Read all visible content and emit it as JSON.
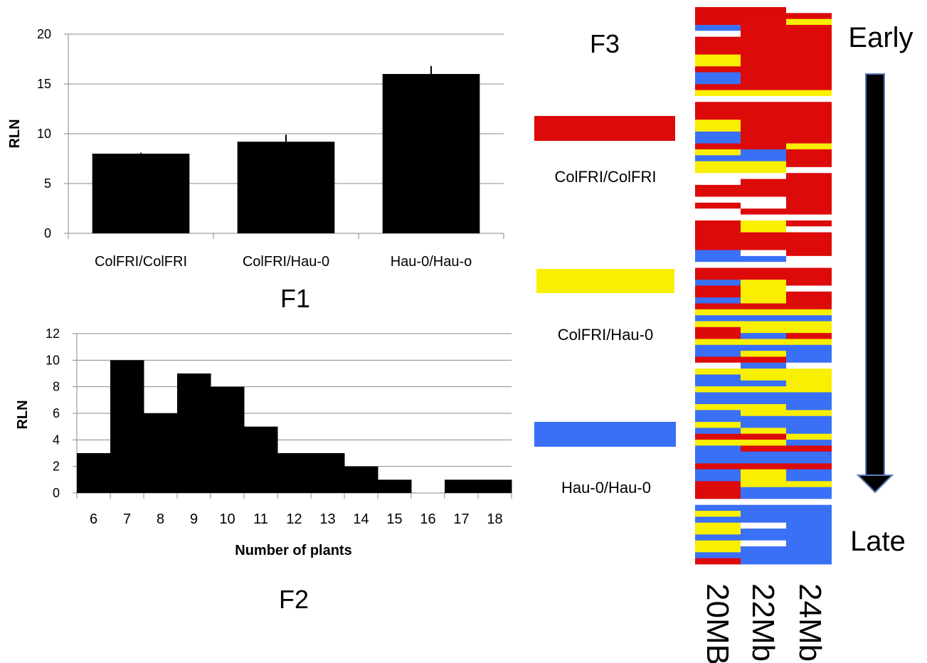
{
  "colors": {
    "bar": "#000000",
    "grid": "#888888",
    "ColFRI/ColFRI": "#dd0a0a",
    "ColFRI/Hau-0": "#f9ef00",
    "Hau-0/Hau-0": "#3a70f6",
    "missing": "#ffffff"
  },
  "chart_data": [
    {
      "type": "bar",
      "panel": "F1",
      "categories": [
        "ColFRI/ColFRI",
        "ColFRI/Hau-0",
        "Hau-0/Hau-o"
      ],
      "values": [
        8.0,
        9.2,
        16.0
      ],
      "error": [
        0.1,
        0.7,
        0.8
      ],
      "ylabel": "RLN",
      "xlabel": "",
      "ylim": [
        0,
        20
      ],
      "yticks": [
        0,
        5,
        10,
        15,
        20
      ],
      "grid": true
    },
    {
      "type": "bar",
      "panel": "F2",
      "categories": [
        "6",
        "7",
        "8",
        "9",
        "10",
        "11",
        "12",
        "13",
        "14",
        "15",
        "16",
        "17",
        "18"
      ],
      "values": [
        3,
        10,
        6,
        9,
        8,
        5,
        3,
        3,
        2,
        1,
        0,
        1,
        1
      ],
      "ylabel": "RLN",
      "xlabel": "Number of plants",
      "ylim": [
        0,
        12
      ],
      "yticks": [
        0,
        2,
        4,
        6,
        8,
        10,
        12
      ],
      "grid": true
    },
    {
      "type": "heatmap",
      "panel": "F3",
      "columns": [
        "20MB",
        "22Mb",
        "24Mb"
      ],
      "legend": [
        "ColFRI/ColFRI",
        "ColFRI/Hau-0",
        "Hau-0/Hau-0"
      ],
      "codes": {
        "R": "ColFRI/ColFRI",
        "Y": "ColFRI/Hau-0",
        "B": "Hau-0/Hau-0",
        "W": "missing"
      },
      "order": [
        "Early",
        "Late"
      ],
      "rows": [
        "RRW",
        "RRR",
        "RRY",
        "BRR",
        "WRR",
        "RRR",
        "RRR",
        "RRR",
        "YRR",
        "YRR",
        "RRR",
        "BRR",
        "BRR",
        "RRR",
        "YYY",
        "WWW",
        "RRR",
        "RRR",
        "RRR",
        "YRR",
        "YRR",
        "BRR",
        "BRR",
        "RRY",
        "YBR",
        "BBR",
        "YYR",
        "YYW",
        "WWR",
        "WRR",
        "RRR",
        "RRR",
        "WWR",
        "RWR",
        "WRR",
        "WWW",
        "RYR",
        "RYW",
        "RRR",
        "RRR",
        "RRR",
        "BWR",
        "BBW",
        "WWW",
        "RRR",
        "RRR",
        "BYR",
        "RYW",
        "RYR",
        "BYR",
        "RRR",
        "YYY",
        "BBB",
        "YYY",
        "RYY",
        "RBR",
        "YYY",
        "BBB",
        "BYB",
        "RRB",
        "WBW",
        "YYY",
        "BYY",
        "BBY",
        "YYY",
        "BBB",
        "BBB",
        "YYB",
        "BYY",
        "BBB",
        "YBB",
        "BYB",
        "RRY",
        "YYB",
        "BRR",
        "BBB",
        "BBB",
        "RRR",
        "BYB",
        "BYB",
        "RYY",
        "RBB",
        "RBB",
        "WWW",
        "BBB",
        "YBB",
        "BBB",
        "YWB",
        "YBB",
        "BBB",
        "YWB",
        "YBB",
        "BBB",
        "RBB"
      ]
    }
  ],
  "f3_legend_labels": [
    "ColFRI/ColFRI",
    "ColFRI/Hau-0",
    "Hau-0/Hau-0"
  ],
  "labels": {
    "early": "Early",
    "late": "Late"
  }
}
